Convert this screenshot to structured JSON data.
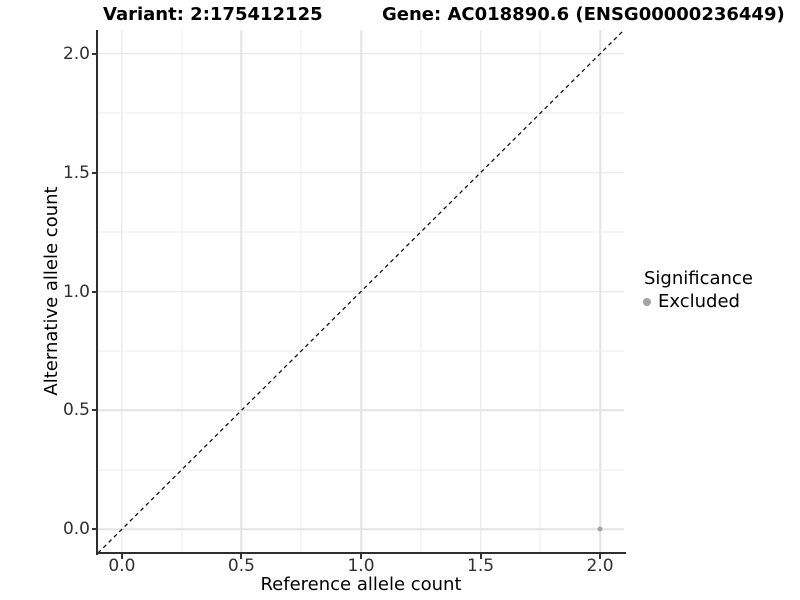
{
  "figure": {
    "title_left": "Variant: 2:175412125",
    "title_right": "Gene: AC018890.6 (ENSG00000236449)"
  },
  "axes": {
    "x": {
      "title": "Reference allele count",
      "tick_labels": [
        "0.0",
        "0.5",
        "1.0",
        "1.5",
        "2.0"
      ]
    },
    "y": {
      "title": "Alternative allele count",
      "tick_labels": [
        "0.0",
        "0.5",
        "1.0",
        "1.5",
        "2.0"
      ]
    }
  },
  "legend": {
    "title": "Significance",
    "items": [
      {
        "label": "Excluded",
        "color": "#a3a3a3"
      }
    ]
  },
  "colors": {
    "grid_major": "#e3e3e3",
    "grid_minor": "#ededed",
    "axis_line": "#2e2e2e",
    "tick_mark": "#333333",
    "reference_line": "#111111"
  },
  "chart_data": {
    "type": "scatter",
    "title": "Variant: 2:175412125 | Gene: AC018890.6 (ENSG00000236449)",
    "xlabel": "Reference allele count",
    "ylabel": "Alternative allele count",
    "xlim": [
      -0.1,
      2.1
    ],
    "ylim": [
      -0.1,
      2.1
    ],
    "x_ticks": [
      0.0,
      0.5,
      1.0,
      1.5,
      2.0
    ],
    "y_ticks": [
      0.0,
      0.5,
      1.0,
      1.5,
      2.0
    ],
    "grid": true,
    "legend_position": "right",
    "series": [
      {
        "name": "Excluded",
        "color": "#a3a3a3",
        "points": [
          {
            "x": 2.0,
            "y": 0.0
          }
        ]
      }
    ],
    "reference_line": {
      "style": "dashed",
      "equation": "y = x",
      "from": [
        -0.1,
        -0.1
      ],
      "to": [
        2.1,
        2.1
      ],
      "color": "#111111",
      "dash": "4 3.5"
    }
  }
}
